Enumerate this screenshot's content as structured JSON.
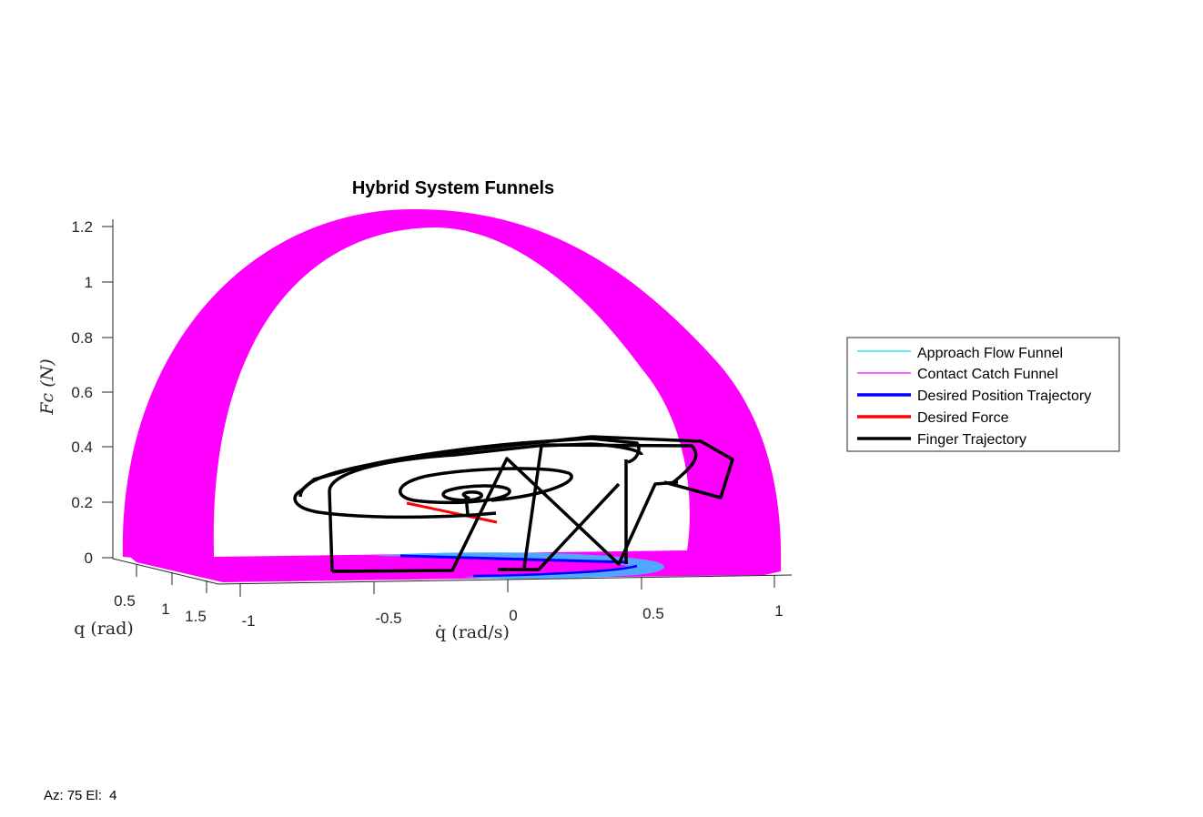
{
  "chart_data": {
    "type": "line",
    "projection": "3d",
    "title": "Hybrid System Funnels",
    "axes": {
      "x": {
        "label": "q (rad)",
        "ticks": [
          "0.5",
          "1",
          "1.5"
        ]
      },
      "y": {
        "label": "q̇ (rad/s)",
        "ticks": [
          "-1",
          "-0.5",
          "0",
          "0.5",
          "1"
        ],
        "range": [
          -1,
          1
        ]
      },
      "z": {
        "label": "Fc (N)",
        "ticks": [
          "0",
          "0.2",
          "0.4",
          "0.6",
          "0.8",
          "1",
          "1.2"
        ],
        "range": [
          0,
          1.25
        ]
      }
    },
    "grid": false,
    "legend_position": "right",
    "series": [
      {
        "name": "Approach Flow Funnel",
        "color": "#00e5e5"
      },
      {
        "name": "Contact Catch Funnel",
        "color": "#ff00ff"
      },
      {
        "name": "Desired Position Trajectory",
        "color": "#0000ff"
      },
      {
        "name": "Desired Force",
        "color": "#ff0000"
      },
      {
        "name": "Finger Trajectory",
        "color": "#000000"
      }
    ]
  },
  "status": {
    "az_label": "Az:",
    "az_value": "75",
    "el_label": "El:",
    "el_value": "4"
  }
}
